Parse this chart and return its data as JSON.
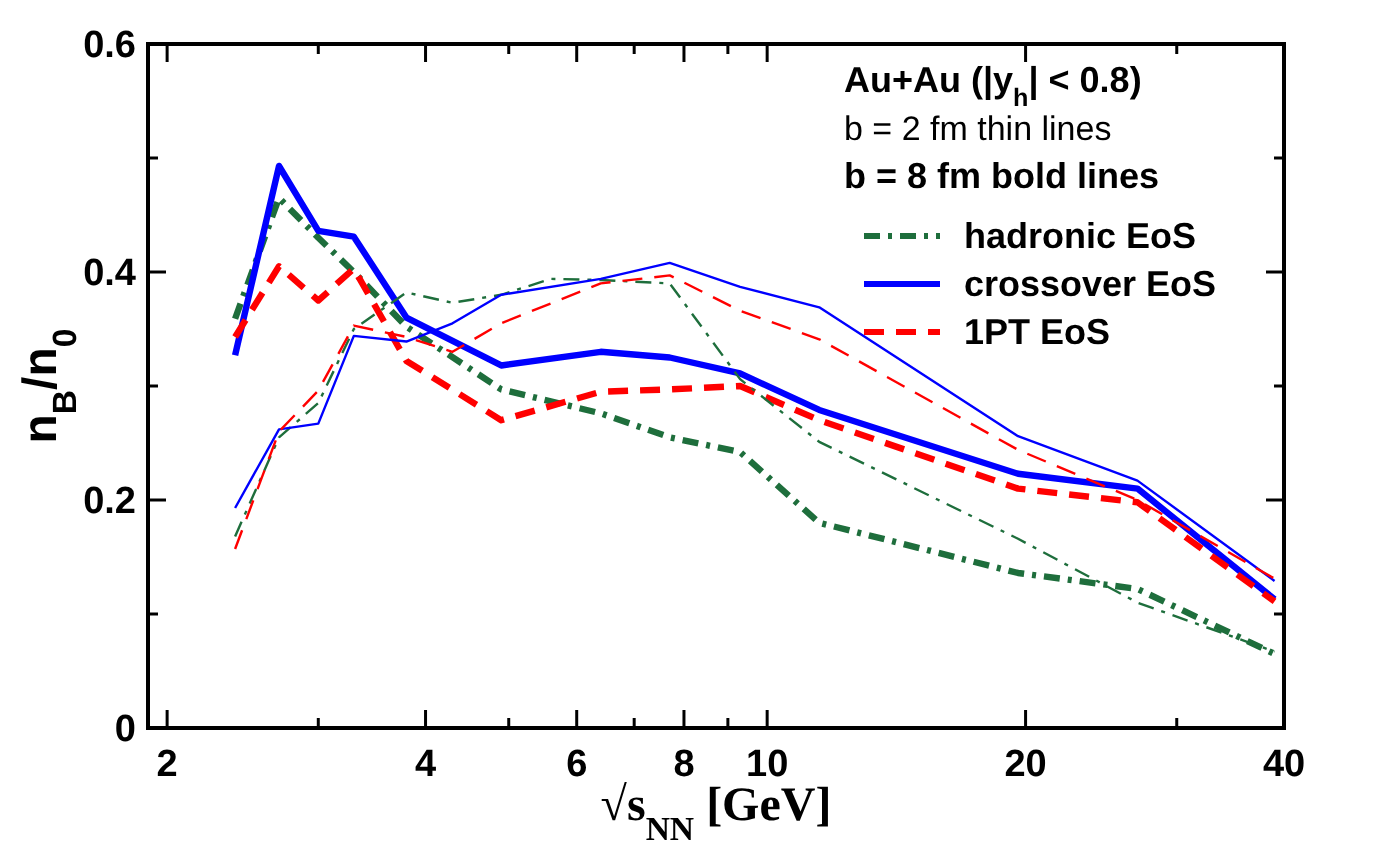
{
  "chart_data": {
    "type": "line",
    "xlabel": "√s$_{NN}$ [GeV]",
    "ylabel": "n$_{B}$/n$_{0}$",
    "log": "x",
    "xlim": [
      1.9,
      40
    ],
    "ylim": [
      0,
      0.6
    ],
    "xticks": [
      2,
      {
        "value": 3,
        "label": null
      },
      4,
      {
        "value": 5,
        "label": null
      },
      6,
      {
        "value": 7,
        "label": null
      },
      8,
      {
        "value": 9,
        "label": null
      },
      10,
      20,
      {
        "value": 30,
        "label": null
      },
      40
    ],
    "yticks": [
      {
        "value": 0,
        "label": "0"
      },
      {
        "value": 0.1,
        "label": null
      },
      0.2,
      {
        "value": 0.3,
        "label": null
      },
      0.4,
      {
        "value": 0.5,
        "label": null
      },
      0.6
    ],
    "legend": "top right",
    "grid": false,
    "annotations": [
      "Au+Au (|y$_{h}$| < 0.8)",
      "b = 2 fm  thin lines",
      "b = 8 fm bold lines"
    ],
    "series": [
      {
        "name": "hadronic EoS",
        "color": "#1e6e3c",
        "line_style": "dashdot",
        "x": [
          2.4,
          2.7,
          3.0,
          3.3,
          3.8,
          4.9,
          6.4,
          7.7,
          9.3,
          11.5,
          19.6,
          27,
          39
        ],
        "values": [
          0.359,
          0.465,
          0.43,
          0.4,
          0.352,
          0.297,
          0.276,
          0.255,
          0.242,
          0.18,
          0.136,
          0.122,
          0.065
        ]
      },
      {
        "name": "crossover EoS",
        "color": "#0000ff",
        "line_style": "solid",
        "x": [
          2.4,
          2.7,
          3.0,
          3.3,
          3.8,
          4.9,
          6.4,
          7.7,
          9.3,
          11.5,
          19.6,
          27,
          39
        ],
        "values": [
          0.327,
          0.493,
          0.436,
          0.431,
          0.36,
          0.318,
          0.33,
          0.325,
          0.311,
          0.279,
          0.223,
          0.21,
          0.113
        ]
      },
      {
        "name": "1PT EoS",
        "color": "#ff0000",
        "line_style": "dashed",
        "x": [
          2.4,
          2.7,
          3.0,
          3.3,
          3.8,
          4.9,
          6.4,
          7.7,
          9.3,
          11.5,
          19.6,
          27,
          39
        ],
        "values": [
          0.343,
          0.405,
          0.375,
          0.403,
          0.322,
          0.27,
          0.295,
          0.297,
          0.3,
          0.27,
          0.21,
          0.198,
          0.111
        ]
      },
      {
        "color": "#1e6e3c",
        "line_style": "dashdot",
        "x": [
          2.4,
          2.7,
          3.0,
          3.3,
          3.8,
          4.3,
          4.9,
          5.6,
          6.4,
          7.7,
          9.3,
          11.5,
          19.6,
          27,
          39
        ],
        "values": [
          0.168,
          0.255,
          0.285,
          0.35,
          0.382,
          0.373,
          0.38,
          0.394,
          0.393,
          0.39,
          0.306,
          0.251,
          0.166,
          0.11,
          0.067
        ]
      },
      {
        "color": "#0000ff",
        "line_style": "solid",
        "x": [
          2.4,
          2.7,
          3.0,
          3.3,
          3.8,
          4.3,
          4.9,
          6.4,
          7.7,
          9.3,
          11.5,
          19.6,
          27,
          39
        ],
        "values": [
          0.193,
          0.262,
          0.267,
          0.344,
          0.339,
          0.355,
          0.38,
          0.394,
          0.408,
          0.387,
          0.369,
          0.256,
          0.217,
          0.129
        ]
      },
      {
        "color": "#ff0000",
        "line_style": "dashed",
        "x": [
          2.4,
          2.7,
          3.0,
          3.3,
          3.8,
          4.3,
          4.9,
          6.4,
          7.7,
          9.3,
          11.5,
          19.6,
          27,
          39
        ],
        "values": [
          0.157,
          0.26,
          0.296,
          0.353,
          0.343,
          0.33,
          0.355,
          0.39,
          0.397,
          0.366,
          0.341,
          0.244,
          0.2,
          0.131
        ]
      }
    ]
  }
}
